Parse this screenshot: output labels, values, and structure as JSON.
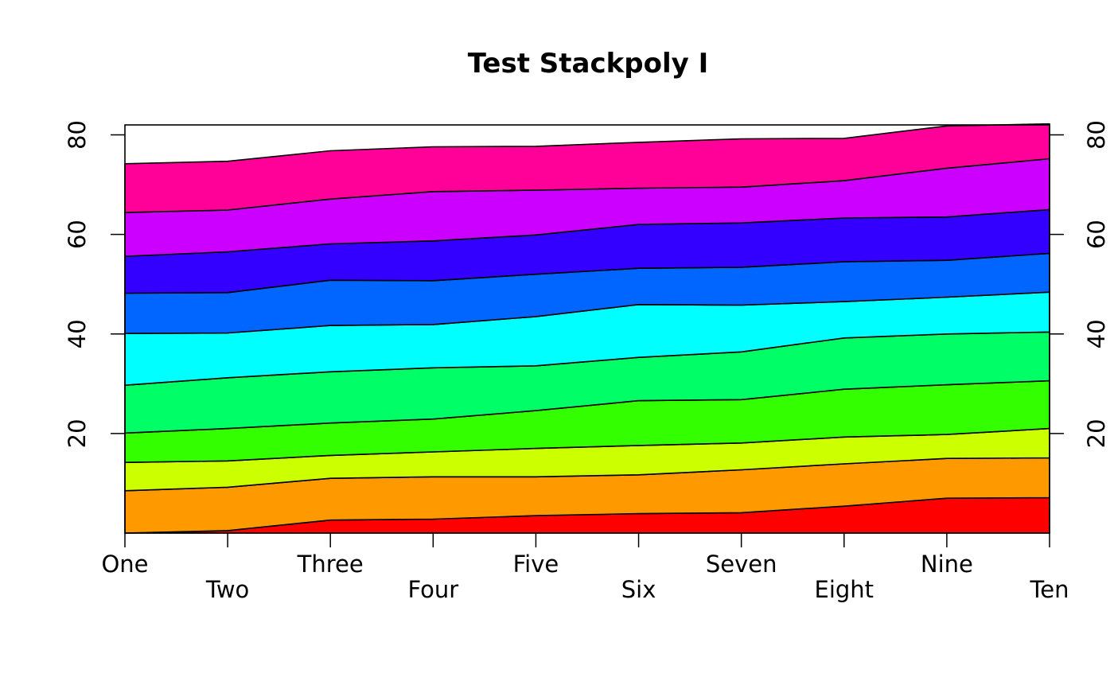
{
  "chart_data": {
    "type": "area",
    "stacked": true,
    "title": "Test Stackpoly I",
    "xlabel": "",
    "ylabel": "",
    "categories": [
      "One",
      "Two",
      "Three",
      "Four",
      "Five",
      "Six",
      "Seven",
      "Eight",
      "Nine",
      "Ten"
    ],
    "ylim": [
      0,
      82
    ],
    "y_ticks": [
      20,
      40,
      60,
      80
    ],
    "y_axis_sides": [
      "left",
      "right"
    ],
    "grid": false,
    "legend": "none",
    "series": [
      {
        "color": "#FF0000",
        "values": [
          0.0,
          0.5,
          2.6,
          2.8,
          3.5,
          3.9,
          4.1,
          5.4,
          7.0,
          7.1
        ]
      },
      {
        "color": "#FF9900",
        "values": [
          8.5,
          8.7,
          8.4,
          8.5,
          7.8,
          7.8,
          8.6,
          8.5,
          8.0,
          8.0
        ]
      },
      {
        "color": "#CCFF00",
        "values": [
          5.7,
          5.3,
          4.6,
          5.0,
          5.7,
          5.9,
          5.4,
          5.4,
          4.8,
          5.9
        ]
      },
      {
        "color": "#33FF00",
        "values": [
          5.9,
          6.5,
          6.5,
          6.6,
          7.6,
          9.0,
          8.7,
          9.6,
          10.0,
          9.6
        ]
      },
      {
        "color": "#00FF66",
        "values": [
          9.6,
          10.2,
          10.3,
          10.3,
          9.0,
          8.7,
          9.6,
          10.3,
          10.2,
          9.8
        ]
      },
      {
        "color": "#00FFFF",
        "values": [
          10.4,
          9.0,
          9.3,
          8.7,
          9.9,
          10.6,
          9.4,
          7.3,
          7.4,
          8.0
        ]
      },
      {
        "color": "#0066FF",
        "values": [
          8.1,
          8.1,
          9.1,
          8.8,
          8.5,
          7.3,
          7.6,
          8.0,
          7.4,
          7.8
        ]
      },
      {
        "color": "#3300FF",
        "values": [
          7.4,
          8.2,
          7.3,
          8.0,
          7.9,
          8.8,
          8.9,
          8.8,
          8.7,
          8.8
        ]
      },
      {
        "color": "#CC00FF",
        "values": [
          8.8,
          8.4,
          9.0,
          9.9,
          9.0,
          7.3,
          7.2,
          7.5,
          9.8,
          10.2
        ]
      },
      {
        "color": "#FF0099",
        "values": [
          9.8,
          9.8,
          9.7,
          9.0,
          8.8,
          9.2,
          9.7,
          8.5,
          8.5,
          7.0
        ]
      }
    ]
  }
}
